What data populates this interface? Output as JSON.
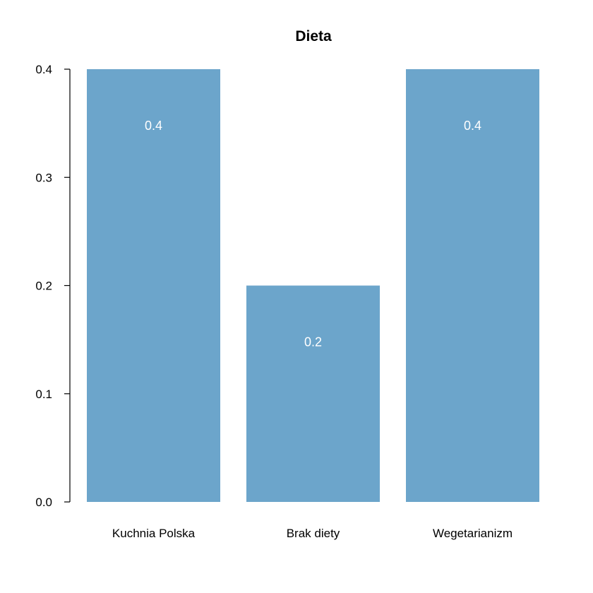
{
  "chart_data": {
    "type": "bar",
    "title": "Dieta",
    "xlabel": "",
    "ylabel": "",
    "categories": [
      "Kuchnia Polska",
      "Brak diety",
      "Wegetarianizm"
    ],
    "values": [
      0.4,
      0.2,
      0.4
    ],
    "data_labels": [
      "0.4",
      "0.2",
      "0.4"
    ],
    "ylim": [
      0,
      0.4
    ],
    "yticks": [
      0.0,
      0.1,
      0.2,
      0.3,
      0.4
    ],
    "ytick_labels": [
      "0.0",
      "0.1",
      "0.2",
      "0.3",
      "0.4"
    ],
    "grid": false,
    "bar_color": "#6ca5cb",
    "data_label_color": "#ffffff"
  }
}
